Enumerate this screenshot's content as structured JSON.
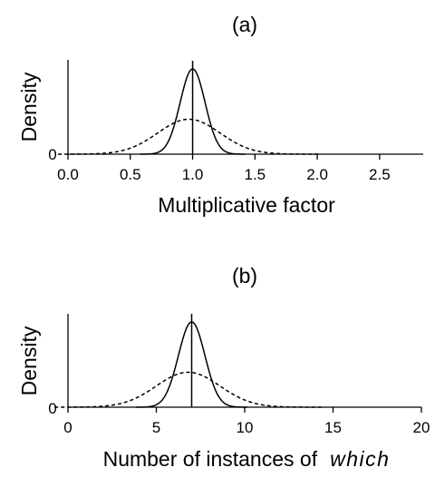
{
  "chart_data": [
    {
      "type": "line",
      "panel_label": "(a)",
      "xlabel": "Multiplicative factor",
      "ylabel": "Density",
      "xlim": [
        0.0,
        2.85
      ],
      "x_ticks": [
        0.0,
        0.5,
        1.0,
        1.5,
        2.0,
        2.5
      ],
      "x_tick_labels": [
        "0.0",
        "0.5",
        "1.0",
        "1.5",
        "2.0",
        "2.5"
      ],
      "y_tick_labels": [
        "0"
      ],
      "vline_x": 1.0,
      "series": [
        {
          "style": "solid",
          "mean": 1.0,
          "sd": 0.1,
          "peak": 1.0
        },
        {
          "style": "dashed",
          "mean": 0.97,
          "sd": 0.25,
          "peak": 0.41
        }
      ]
    },
    {
      "type": "line",
      "panel_label": "(b)",
      "xlabel_prefix": "Number of instances of",
      "xlabel_italic": "which",
      "ylabel": "Density",
      "xlim": [
        0,
        20
      ],
      "x_ticks": [
        0,
        5,
        10,
        15,
        20
      ],
      "x_tick_labels": [
        "0",
        "5",
        "10",
        "15",
        "20"
      ],
      "y_tick_labels": [
        "0"
      ],
      "vline_x": 7,
      "series": [
        {
          "style": "solid",
          "mean": 7.0,
          "sd": 0.75,
          "peak": 1.0
        },
        {
          "style": "dashed",
          "mean": 6.8,
          "sd": 1.8,
          "peak": 0.41
        }
      ]
    }
  ]
}
